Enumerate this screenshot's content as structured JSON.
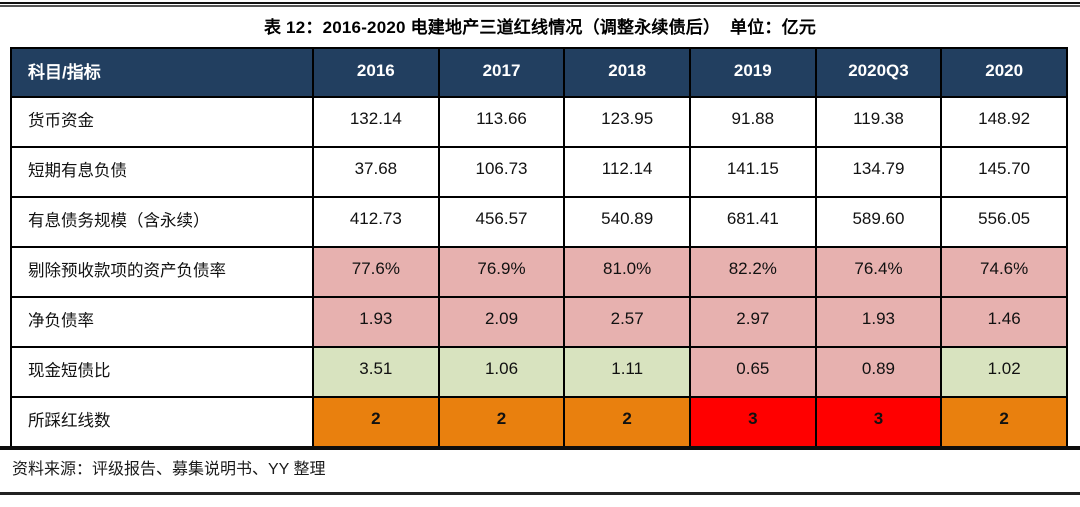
{
  "title": "表 12：2016-2020 电建地产三道红线情况（调整永续债后）  单位：亿元",
  "source_note": "资料来源：评级报告、募集说明书、YY 整理",
  "colors": {
    "header_bg": "#223F60",
    "header_text": "#FFFFFF",
    "pink": "#E7B1AF",
    "green": "#D8E3BF",
    "orange": "#E9800E",
    "red": "#FF0000",
    "border": "#000000"
  },
  "chart_data": {
    "type": "table",
    "columns": [
      "科目/指标",
      "2016",
      "2017",
      "2018",
      "2019",
      "2020Q3",
      "2020"
    ],
    "rows": [
      {
        "label": "货币资金",
        "values": [
          "132.14",
          "113.66",
          "123.95",
          "91.88",
          "119.38",
          "148.92"
        ],
        "cell_colors": [
          "none",
          "none",
          "none",
          "none",
          "none",
          "none"
        ],
        "bold": false
      },
      {
        "label": "短期有息负债",
        "values": [
          "37.68",
          "106.73",
          "112.14",
          "141.15",
          "134.79",
          "145.70"
        ],
        "cell_colors": [
          "none",
          "none",
          "none",
          "none",
          "none",
          "none"
        ],
        "bold": false
      },
      {
        "label": "有息债务规模（含永续）",
        "values": [
          "412.73",
          "456.57",
          "540.89",
          "681.41",
          "589.60",
          "556.05"
        ],
        "cell_colors": [
          "none",
          "none",
          "none",
          "none",
          "none",
          "none"
        ],
        "bold": false
      },
      {
        "label": "剔除预收款项的资产负债率",
        "values": [
          "77.6%",
          "76.9%",
          "81.0%",
          "82.2%",
          "76.4%",
          "74.6%"
        ],
        "cell_colors": [
          "pink",
          "pink",
          "pink",
          "pink",
          "pink",
          "pink"
        ],
        "bold": false
      },
      {
        "label": "净负债率",
        "values": [
          "1.93",
          "2.09",
          "2.57",
          "2.97",
          "1.93",
          "1.46"
        ],
        "cell_colors": [
          "pink",
          "pink",
          "pink",
          "pink",
          "pink",
          "pink"
        ],
        "bold": false
      },
      {
        "label": "现金短债比",
        "values": [
          "3.51",
          "1.06",
          "1.11",
          "0.65",
          "0.89",
          "1.02"
        ],
        "cell_colors": [
          "green",
          "green",
          "green",
          "pink",
          "pink",
          "green"
        ],
        "bold": false
      },
      {
        "label": "所踩红线数",
        "values": [
          "2",
          "2",
          "2",
          "3",
          "3",
          "2"
        ],
        "cell_colors": [
          "orange",
          "orange",
          "orange",
          "red",
          "red",
          "orange"
        ],
        "bold": true
      }
    ]
  }
}
